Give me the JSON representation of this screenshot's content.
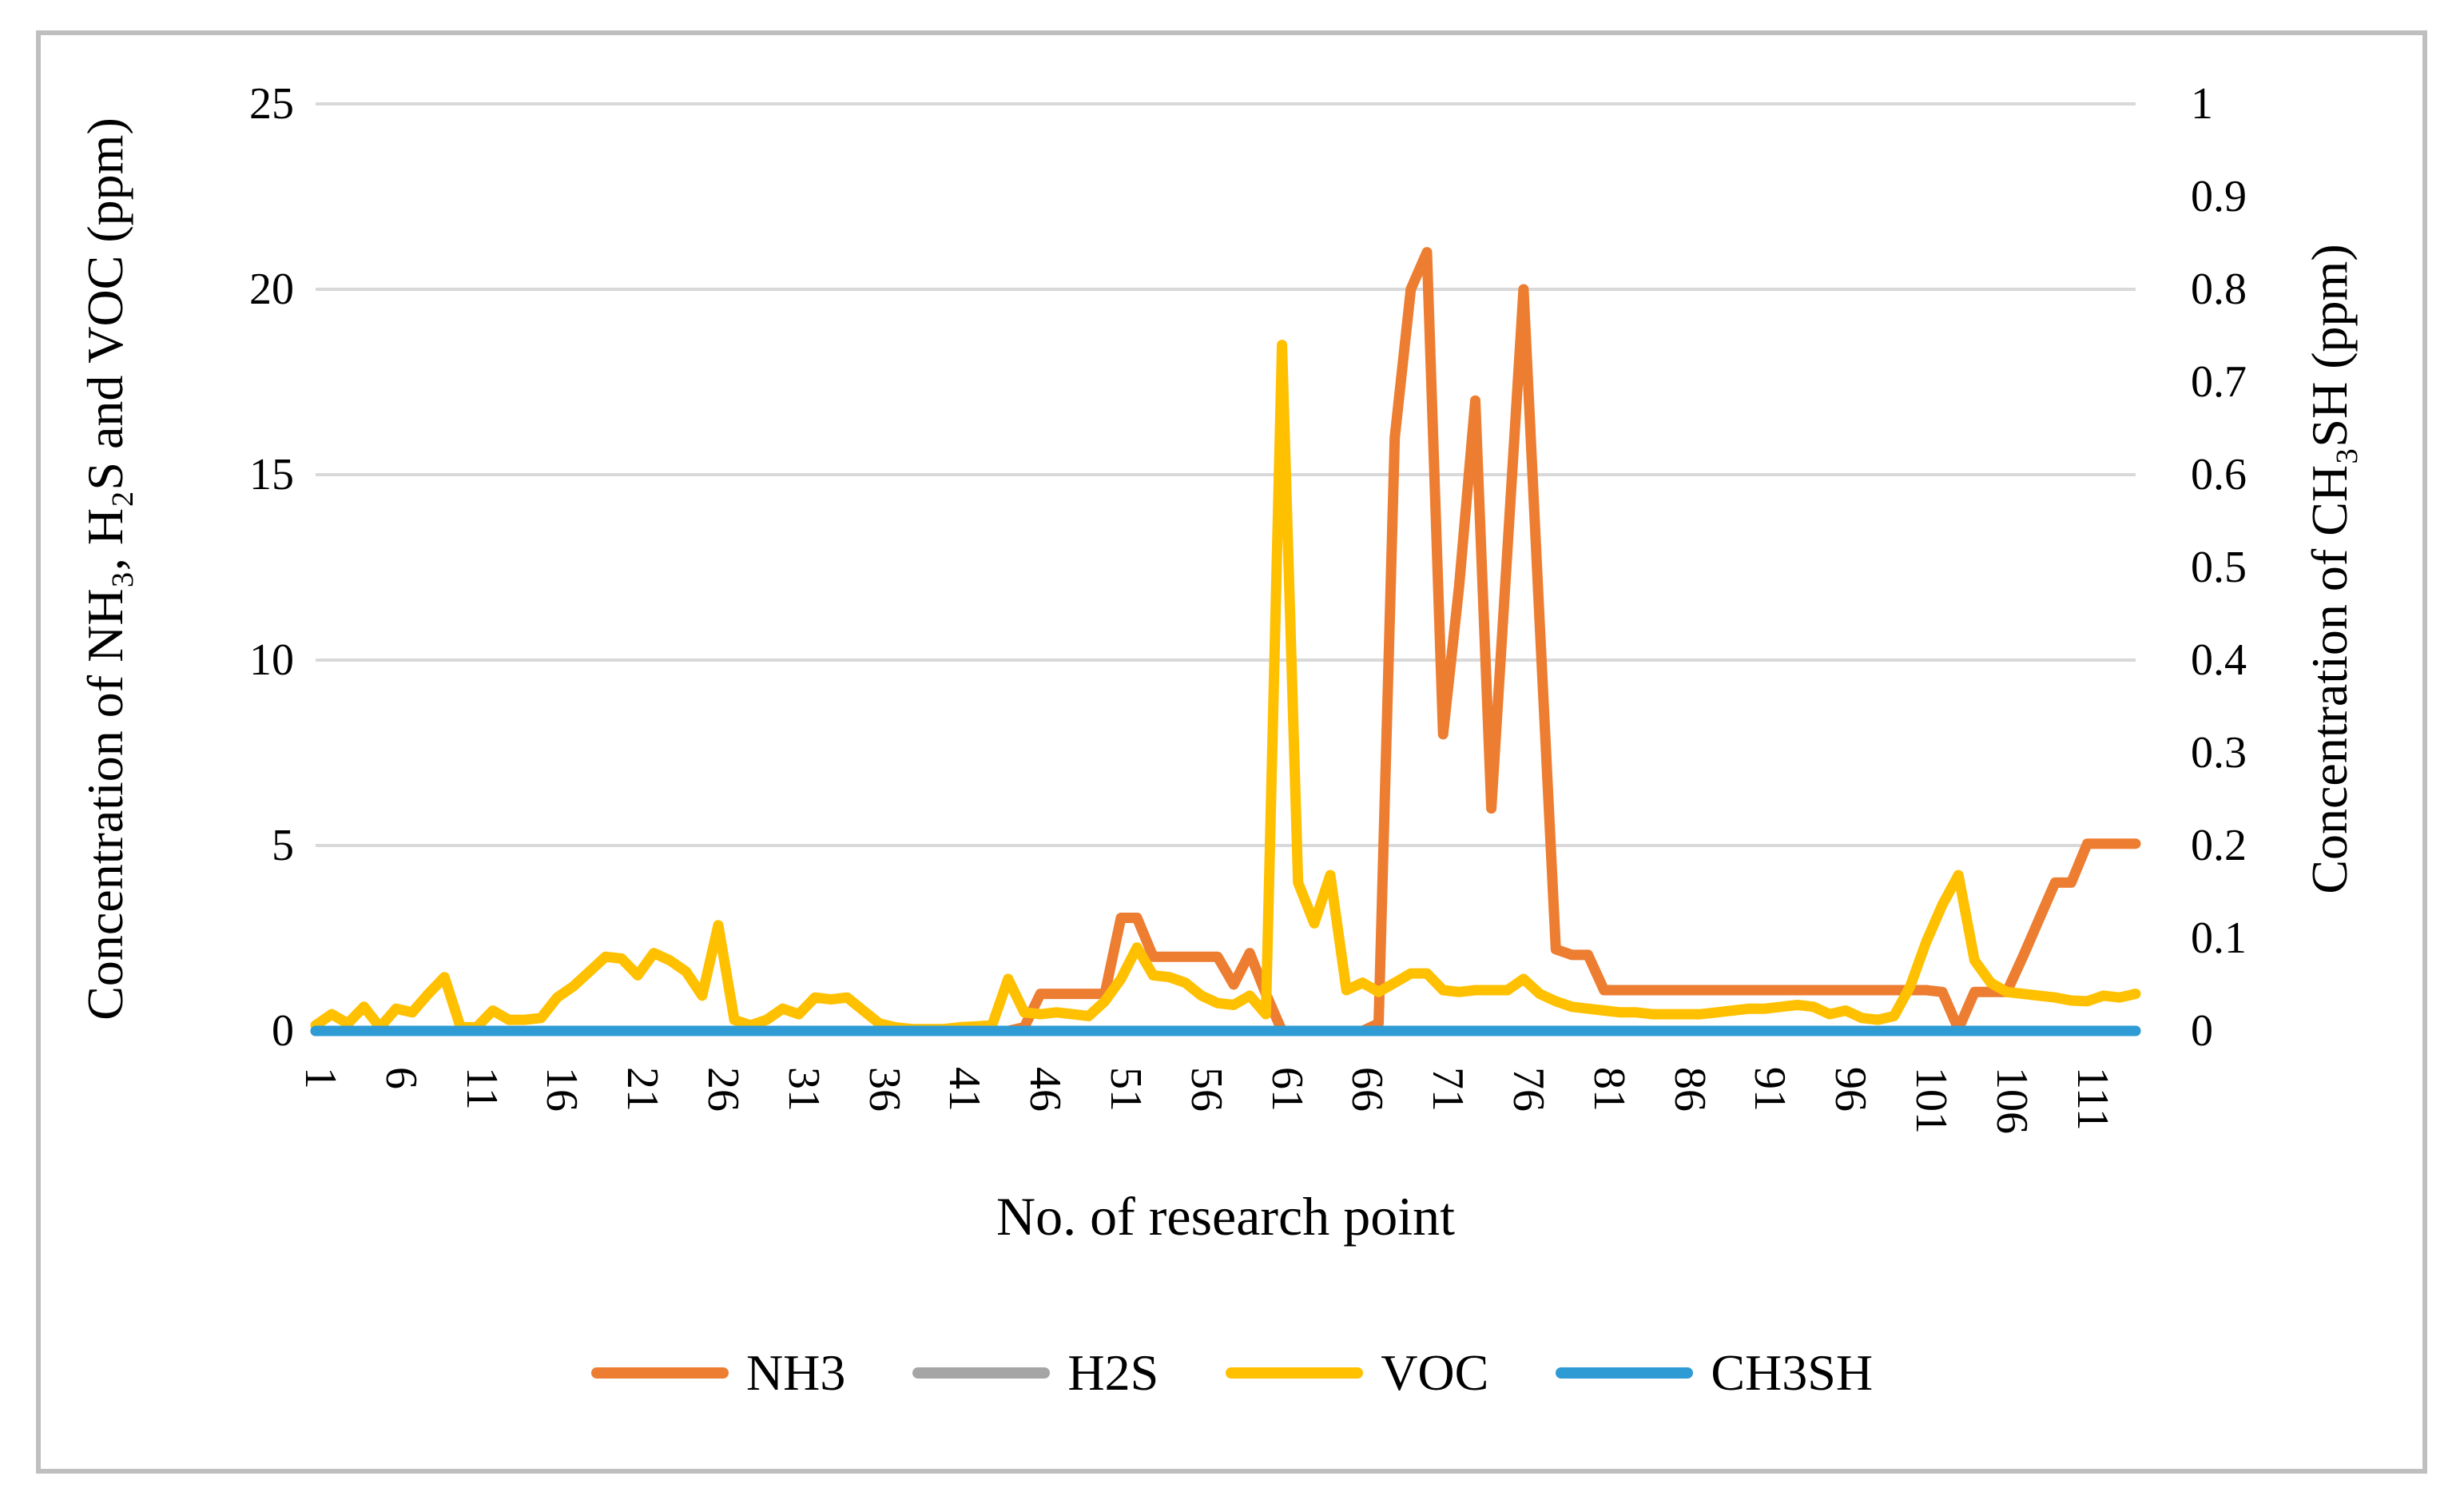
{
  "figure": {
    "background": "#FFFFFF",
    "border_color": "#BFBFBF"
  },
  "chart_data": {
    "type": "line",
    "title": "",
    "xlabel": "No. of research point",
    "ylabel_left": "Concentration of NH₃, H₂S and VOC (ppm)",
    "ylabel_right": "Concentration of CH₃SH (ppm)",
    "grid": "horizontal",
    "grid_color": "#D9D9D9",
    "legend_position": "bottom",
    "x_start": 1,
    "x_end": 114,
    "x_ticks": [
      1,
      6,
      11,
      16,
      21,
      26,
      31,
      36,
      41,
      46,
      51,
      56,
      61,
      66,
      71,
      76,
      81,
      86,
      91,
      96,
      101,
      106,
      111
    ],
    "ylim_left": [
      0,
      25
    ],
    "left_ticks": [
      0,
      5,
      10,
      15,
      20,
      25
    ],
    "ylim_right": [
      0,
      1
    ],
    "right_ticks": [
      0,
      0.1,
      0.2,
      0.3,
      0.4,
      0.5,
      0.6,
      0.7,
      0.8,
      0.9,
      1
    ],
    "series": [
      {
        "name": "NH3",
        "color": "#ED7D31",
        "axis": "left",
        "values": [
          0,
          0,
          0,
          0,
          0,
          0,
          0,
          0,
          0,
          0,
          0,
          0,
          0,
          0,
          0,
          0,
          0,
          0,
          0,
          0,
          0,
          0,
          0,
          0,
          0,
          0,
          0,
          0,
          0,
          0,
          0,
          0,
          0,
          0,
          0,
          0,
          0,
          0,
          0,
          0,
          0,
          0,
          0,
          0,
          0.1,
          1,
          1,
          1,
          1,
          1,
          3.05,
          3.05,
          2,
          2,
          2,
          2,
          2,
          1.25,
          2.1,
          1,
          0,
          0,
          0,
          0,
          0,
          0,
          0.2,
          16,
          20,
          21,
          8,
          12,
          17,
          6,
          13,
          20,
          11,
          2.2,
          2.05,
          2.05,
          1.1,
          1.1,
          1.1,
          1.1,
          1.1,
          1.1,
          1.1,
          1.1,
          1.1,
          1.1,
          1.1,
          1.1,
          1.1,
          1.1,
          1.1,
          1.1,
          1.1,
          1.1,
          1.1,
          1.1,
          1.1,
          1.05,
          0.05,
          1.05,
          1.05,
          1.05,
          2,
          3,
          4,
          4,
          5.05,
          5.05,
          5.05,
          5.05
        ]
      },
      {
        "name": "H2S",
        "color": "#A5A5A5",
        "axis": "left",
        "values": [
          0,
          0,
          0,
          0,
          0,
          0,
          0,
          0,
          0,
          0,
          0,
          0,
          0,
          0,
          0,
          0,
          0,
          0,
          0,
          0,
          0,
          0,
          0,
          0,
          0,
          0,
          0,
          0,
          0,
          0,
          0,
          0,
          0,
          0,
          0,
          0,
          0,
          0,
          0,
          0,
          0,
          0,
          0,
          0,
          0,
          0,
          0,
          0,
          0,
          0,
          0,
          0,
          0,
          0,
          0,
          0,
          0,
          0,
          0,
          0,
          0,
          0,
          0,
          0,
          0,
          0,
          0,
          0,
          0,
          0,
          0,
          0,
          0,
          0,
          0,
          0,
          0,
          0,
          0,
          0,
          0,
          0,
          0,
          0,
          0,
          0,
          0,
          0,
          0,
          0,
          0,
          0,
          0,
          0,
          0,
          0,
          0,
          0,
          0,
          0,
          0,
          0,
          0,
          0,
          0,
          0,
          0,
          0,
          0,
          0,
          0,
          0,
          0,
          0
        ]
      },
      {
        "name": "VOC",
        "color": "#FFC000",
        "axis": "left",
        "values": [
          0.15,
          0.45,
          0.2,
          0.65,
          0.1,
          0.6,
          0.5,
          1,
          1.45,
          0.1,
          0.1,
          0.55,
          0.3,
          0.3,
          0.35,
          0.9,
          1.2,
          1.6,
          2,
          1.95,
          1.5,
          2.1,
          1.9,
          1.6,
          0.95,
          2.85,
          0.3,
          0.15,
          0.3,
          0.6,
          0.45,
          0.9,
          0.85,
          0.9,
          0.55,
          0.2,
          0.1,
          0.05,
          0.05,
          0.05,
          0.1,
          0.12,
          0.15,
          1.4,
          0.5,
          0.45,
          0.5,
          0.45,
          0.4,
          0.8,
          1.4,
          2.25,
          1.5,
          1.45,
          1.3,
          0.95,
          0.75,
          0.7,
          0.95,
          0.45,
          18.5,
          4,
          2.9,
          4.2,
          1.1,
          1.3,
          1.05,
          1.3,
          1.55,
          1.55,
          1.1,
          1.05,
          1.1,
          1.1,
          1.1,
          1.4,
          1,
          0.8,
          0.65,
          0.6,
          0.55,
          0.5,
          0.5,
          0.45,
          0.45,
          0.45,
          0.45,
          0.5,
          0.55,
          0.6,
          0.6,
          0.65,
          0.7,
          0.65,
          0.45,
          0.55,
          0.35,
          0.3,
          0.4,
          1.2,
          2.4,
          3.4,
          4.2,
          1.9,
          1.3,
          1.05,
          1,
          0.95,
          0.9,
          0.82,
          0.8,
          0.95,
          0.9,
          1
        ]
      },
      {
        "name": "CH3SH",
        "color": "#2E9BD5",
        "axis": "right",
        "values": [
          0,
          0,
          0,
          0,
          0,
          0,
          0,
          0,
          0,
          0,
          0,
          0,
          0,
          0,
          0,
          0,
          0,
          0,
          0,
          0,
          0,
          0,
          0,
          0,
          0,
          0,
          0,
          0,
          0,
          0,
          0,
          0,
          0,
          0,
          0,
          0,
          0,
          0,
          0,
          0,
          0,
          0,
          0,
          0,
          0,
          0,
          0,
          0,
          0,
          0,
          0,
          0,
          0,
          0,
          0,
          0,
          0,
          0,
          0,
          0,
          0,
          0,
          0,
          0,
          0,
          0,
          0,
          0,
          0,
          0,
          0,
          0,
          0,
          0,
          0,
          0,
          0,
          0,
          0,
          0,
          0,
          0,
          0,
          0,
          0,
          0,
          0,
          0,
          0,
          0,
          0,
          0,
          0,
          0,
          0,
          0,
          0,
          0,
          0,
          0,
          0,
          0,
          0,
          0,
          0,
          0,
          0,
          0,
          0,
          0,
          0,
          0,
          0,
          0
        ]
      }
    ]
  }
}
